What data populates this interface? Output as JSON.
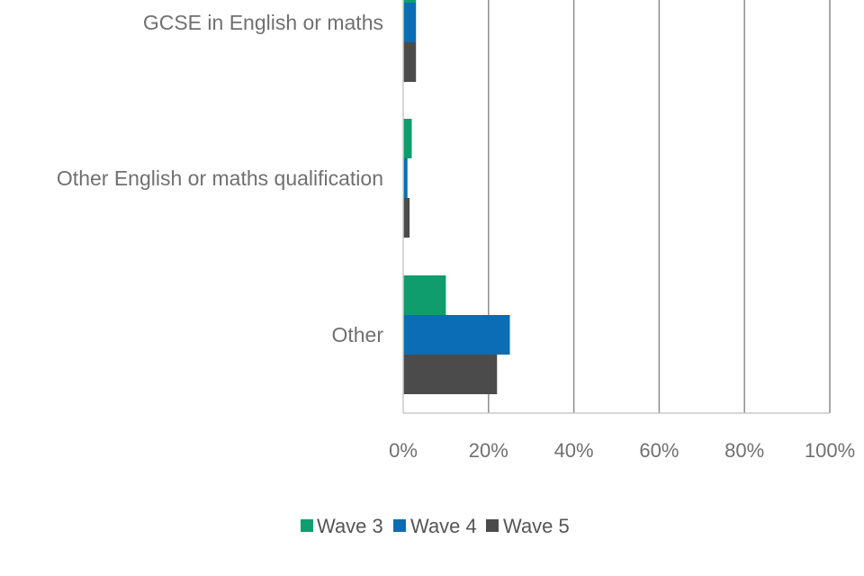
{
  "chart_data": {
    "type": "bar",
    "orientation": "horizontal",
    "categories": [
      "GCSE in English or maths",
      "Other English or maths qualification",
      "Other"
    ],
    "series": [
      {
        "name": "Wave 3",
        "color": "#0f9d6e",
        "values": [
          3,
          2,
          10
        ]
      },
      {
        "name": "Wave 4",
        "color": "#0a6db6",
        "values": [
          3,
          1,
          25
        ]
      },
      {
        "name": "Wave 5",
        "color": "#4b4b4b",
        "values": [
          3,
          1.5,
          22
        ]
      }
    ],
    "xlim": [
      0,
      100
    ],
    "x_ticks": [
      "0%",
      "20%",
      "40%",
      "60%",
      "80%",
      "100%"
    ],
    "grid": true,
    "legend_position": "bottom"
  }
}
